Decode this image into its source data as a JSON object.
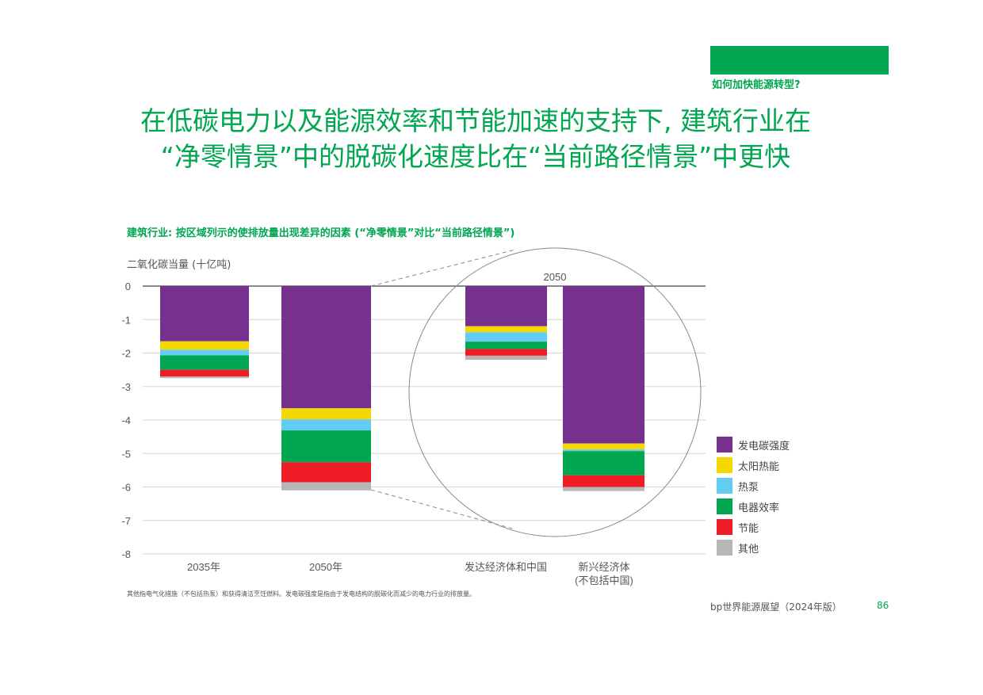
{
  "header": {
    "section_label": "如何加快能源转型?",
    "title_line1": "在低碳电力以及能源效率和节能加速的支持下, 建筑行业在",
    "title_line2": "“净零情景”中的脱碳化速度比在“当前路径情景”中更快"
  },
  "colors": {
    "brand_green": "#00a650",
    "purple": "#76308e",
    "yellow": "#f5d800",
    "light_blue": "#63ccf2",
    "green": "#00a650",
    "red": "#ee1c25",
    "grey": "#b7b7b7"
  },
  "chart_data": {
    "type": "bar",
    "stacked": true,
    "title": "建筑行业: 按区域列示的使排放量出现差异的因素 (“净零情景”对比“当前路径情景”)",
    "ylabel": "二氧化碳当量 (十亿吨)",
    "xlabel": "",
    "ylim": [
      -8,
      0
    ],
    "yticks": [
      0,
      -1,
      -2,
      -3,
      -4,
      -5,
      -6,
      -7,
      -8
    ],
    "grid": true,
    "legend_position": "right",
    "inset_label": "2050",
    "categories": [
      "2035年",
      "2050年",
      "发达经济体和中国",
      "新兴经济体(不包括中国)"
    ],
    "category_lines": [
      [
        "2035年"
      ],
      [
        "2050年"
      ],
      [
        "发达经济体和中国"
      ],
      [
        "新兴经济体",
        "(不包括中国)"
      ]
    ],
    "series": [
      {
        "name": "发电碳强度",
        "color": "#76308e",
        "values": [
          -1.65,
          -3.65,
          -1.2,
          -4.7
        ]
      },
      {
        "name": "太阳热能",
        "color": "#f5d800",
        "values": [
          -0.25,
          -0.33,
          -0.18,
          -0.18
        ]
      },
      {
        "name": "热泵",
        "color": "#63ccf2",
        "values": [
          -0.17,
          -0.33,
          -0.28,
          -0.05
        ]
      },
      {
        "name": "电器效率",
        "color": "#00a650",
        "values": [
          -0.43,
          -0.95,
          -0.22,
          -0.72
        ]
      },
      {
        "name": "节能",
        "color": "#ee1c25",
        "values": [
          -0.2,
          -0.6,
          -0.2,
          -0.35
        ]
      },
      {
        "name": "其他",
        "color": "#b7b7b7",
        "values": [
          -0.05,
          -0.24,
          -0.12,
          -0.12
        ]
      }
    ]
  },
  "footnote": "其他指电气化措施（不包括热泵）和获得清洁烹饪燃料。发电碳强度是指由于发电结构的脱碳化而减少的电力行业的排放量。",
  "footer": {
    "publication": "bp世界能源展望（2024年版）",
    "page_number": "86"
  }
}
